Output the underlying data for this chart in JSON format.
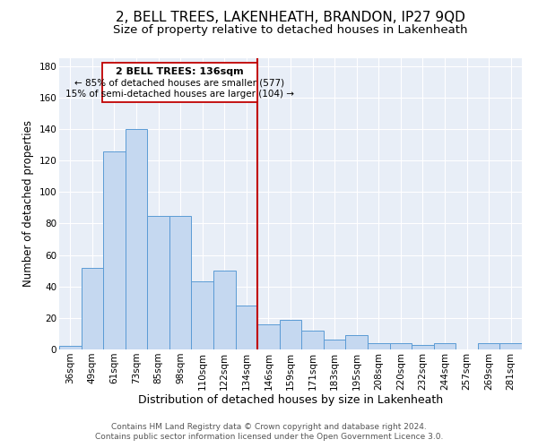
{
  "title": "2, BELL TREES, LAKENHEATH, BRANDON, IP27 9QD",
  "subtitle": "Size of property relative to detached houses in Lakenheath",
  "xlabel": "Distribution of detached houses by size in Lakenheath",
  "ylabel": "Number of detached properties",
  "bar_labels": [
    "36sqm",
    "49sqm",
    "61sqm",
    "73sqm",
    "85sqm",
    "98sqm",
    "110sqm",
    "122sqm",
    "134sqm",
    "146sqm",
    "159sqm",
    "171sqm",
    "183sqm",
    "195sqm",
    "208sqm",
    "220sqm",
    "232sqm",
    "244sqm",
    "257sqm",
    "269sqm",
    "281sqm"
  ],
  "bar_values": [
    2,
    52,
    126,
    140,
    85,
    85,
    43,
    50,
    28,
    16,
    19,
    12,
    6,
    9,
    4,
    4,
    3,
    4,
    0,
    4,
    4
  ],
  "bar_color": "#c5d8f0",
  "bar_edge_color": "#5b9bd5",
  "vline_x": 8.5,
  "vline_color": "#c00000",
  "annotation_title": "2 BELL TREES: 136sqm",
  "annotation_line1": "← 85% of detached houses are smaller (577)",
  "annotation_line2": "15% of semi-detached houses are larger (104) →",
  "annotation_box_edge": "#c00000",
  "ylim": [
    0,
    185
  ],
  "yticks": [
    0,
    20,
    40,
    60,
    80,
    100,
    120,
    140,
    160,
    180
  ],
  "footer1": "Contains HM Land Registry data © Crown copyright and database right 2024.",
  "footer2": "Contains public sector information licensed under the Open Government Licence 3.0.",
  "title_fontsize": 11,
  "subtitle_fontsize": 9.5,
  "xlabel_fontsize": 9,
  "ylabel_fontsize": 8.5,
  "tick_fontsize": 7.5,
  "footer_fontsize": 6.5,
  "bg_color": "#e8eef7",
  "grid_color": "#ffffff"
}
